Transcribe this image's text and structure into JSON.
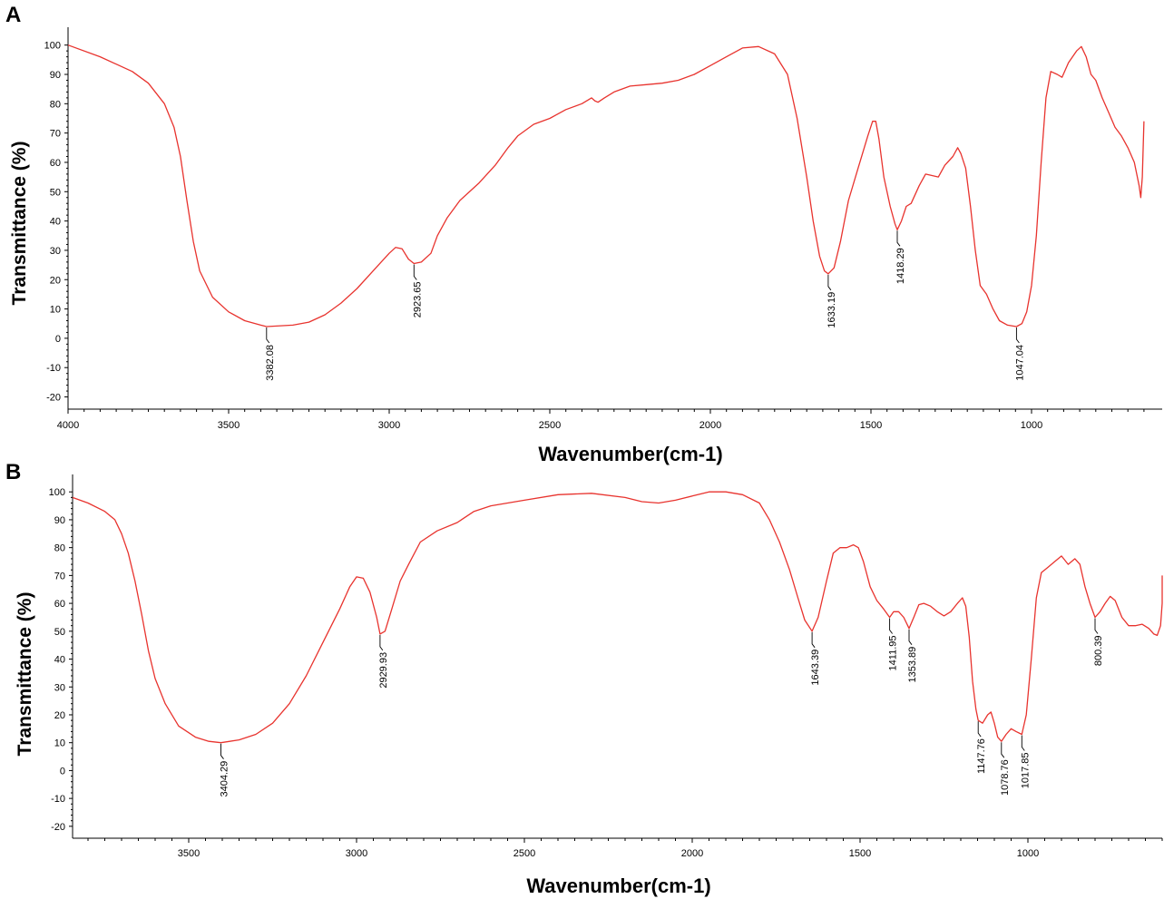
{
  "colors": {
    "spectrum": "#e8332e",
    "axis": "#000000"
  },
  "chart_data": [
    {
      "type": "line",
      "panel_label": "A",
      "xlabel": "Wavenumber(cm-1)",
      "ylabel": "Transmittance (%)",
      "xlim": [
        4000,
        650
      ],
      "ylim": [
        -22,
        103
      ],
      "x_ticks": [
        4000,
        3500,
        3000,
        2500,
        2000,
        1500,
        1000
      ],
      "y_ticks": [
        -20,
        -10,
        0,
        10,
        20,
        30,
        40,
        50,
        60,
        70,
        80,
        90,
        100
      ],
      "series": [
        {
          "points": [
            [
              4000,
              100
            ],
            [
              3900,
              96
            ],
            [
              3800,
              91
            ],
            [
              3750,
              87
            ],
            [
              3700,
              80
            ],
            [
              3670,
              72
            ],
            [
              3650,
              62
            ],
            [
              3630,
              47
            ],
            [
              3610,
              33
            ],
            [
              3590,
              23
            ],
            [
              3550,
              14
            ],
            [
              3500,
              9
            ],
            [
              3450,
              6
            ],
            [
              3400,
              4.5
            ],
            [
              3382,
              4
            ],
            [
              3300,
              4.5
            ],
            [
              3250,
              5.5
            ],
            [
              3200,
              8
            ],
            [
              3150,
              12
            ],
            [
              3100,
              17
            ],
            [
              3050,
              23
            ],
            [
              3000,
              29
            ],
            [
              2980,
              31
            ],
            [
              2960,
              30.5
            ],
            [
              2940,
              27
            ],
            [
              2923,
              25.5
            ],
            [
              2900,
              26
            ],
            [
              2870,
              29
            ],
            [
              2850,
              35
            ],
            [
              2820,
              41
            ],
            [
              2780,
              47
            ],
            [
              2720,
              53
            ],
            [
              2670,
              59
            ],
            [
              2630,
              65
            ],
            [
              2600,
              69
            ],
            [
              2550,
              73
            ],
            [
              2500,
              75
            ],
            [
              2450,
              78
            ],
            [
              2400,
              80
            ],
            [
              2370,
              82
            ],
            [
              2360,
              81
            ],
            [
              2350,
              80.5
            ],
            [
              2330,
              82
            ],
            [
              2300,
              84
            ],
            [
              2250,
              86
            ],
            [
              2200,
              86.5
            ],
            [
              2150,
              87
            ],
            [
              2100,
              88
            ],
            [
              2050,
              90
            ],
            [
              2000,
              93
            ],
            [
              1950,
              96
            ],
            [
              1900,
              99
            ],
            [
              1850,
              99.5
            ],
            [
              1800,
              97
            ],
            [
              1760,
              90
            ],
            [
              1730,
              75
            ],
            [
              1700,
              55
            ],
            [
              1680,
              40
            ],
            [
              1660,
              28
            ],
            [
              1645,
              23
            ],
            [
              1633,
              22
            ],
            [
              1615,
              24
            ],
            [
              1595,
              33
            ],
            [
              1570,
              47
            ],
            [
              1540,
              58
            ],
            [
              1510,
              69
            ],
            [
              1495,
              74
            ],
            [
              1485,
              74
            ],
            [
              1475,
              68
            ],
            [
              1460,
              55
            ],
            [
              1440,
              45
            ],
            [
              1425,
              39
            ],
            [
              1418,
              37
            ],
            [
              1405,
              40
            ],
            [
              1390,
              45
            ],
            [
              1375,
              46
            ],
            [
              1350,
              52
            ],
            [
              1330,
              56
            ],
            [
              1310,
              55.5
            ],
            [
              1290,
              55
            ],
            [
              1270,
              59
            ],
            [
              1245,
              62
            ],
            [
              1230,
              65
            ],
            [
              1220,
              63
            ],
            [
              1205,
              58
            ],
            [
              1190,
              45
            ],
            [
              1175,
              30
            ],
            [
              1160,
              18
            ],
            [
              1140,
              15
            ],
            [
              1120,
              10
            ],
            [
              1100,
              6
            ],
            [
              1075,
              4.5
            ],
            [
              1047,
              4
            ],
            [
              1030,
              5
            ],
            [
              1015,
              9
            ],
            [
              1000,
              18
            ],
            [
              985,
              35
            ],
            [
              970,
              60
            ],
            [
              955,
              82
            ],
            [
              940,
              91
            ],
            [
              920,
              90
            ],
            [
              905,
              89
            ],
            [
              885,
              94
            ],
            [
              860,
              98
            ],
            [
              845,
              99.5
            ],
            [
              830,
              96
            ],
            [
              815,
              90
            ],
            [
              800,
              88
            ],
            [
              780,
              82
            ],
            [
              760,
              77
            ],
            [
              740,
              72
            ],
            [
              720,
              69
            ],
            [
              700,
              65
            ],
            [
              680,
              60
            ],
            [
              665,
              52
            ],
            [
              660,
              48
            ],
            [
              655,
              55
            ],
            [
              650,
              74
            ]
          ]
        }
      ],
      "annotations": [
        {
          "label": "3382.08",
          "x": 3382,
          "y": 4
        },
        {
          "label": "2923.65",
          "x": 2923,
          "y": 25.5
        },
        {
          "label": "1633.19",
          "x": 1633,
          "y": 22
        },
        {
          "label": "1418.29",
          "x": 1418,
          "y": 37
        },
        {
          "label": "1047.04",
          "x": 1047,
          "y": 4
        }
      ]
    },
    {
      "type": "line",
      "panel_label": "B",
      "xlabel": "Wavenumber(cm-1)",
      "ylabel": "Transmittance (%)",
      "xlim": [
        3850,
        580
      ],
      "ylim": [
        -22,
        103
      ],
      "x_ticks": [
        3500,
        3000,
        2500,
        2000,
        1500,
        1000
      ],
      "y_ticks": [
        -20,
        -10,
        0,
        10,
        20,
        30,
        40,
        50,
        60,
        70,
        80,
        90,
        100
      ],
      "series": [
        {
          "points": [
            [
              3850,
              98
            ],
            [
              3800,
              96
            ],
            [
              3750,
              93
            ],
            [
              3720,
              90
            ],
            [
              3700,
              85
            ],
            [
              3680,
              78
            ],
            [
              3660,
              68
            ],
            [
              3640,
              56
            ],
            [
              3620,
              43
            ],
            [
              3600,
              33
            ],
            [
              3570,
              24
            ],
            [
              3530,
              16
            ],
            [
              3480,
              12
            ],
            [
              3440,
              10.5
            ],
            [
              3404,
              10
            ],
            [
              3350,
              11
            ],
            [
              3300,
              13
            ],
            [
              3250,
              17
            ],
            [
              3200,
              24
            ],
            [
              3150,
              34
            ],
            [
              3100,
              46
            ],
            [
              3050,
              58
            ],
            [
              3020,
              66
            ],
            [
              3000,
              69.5
            ],
            [
              2980,
              69
            ],
            [
              2960,
              64
            ],
            [
              2940,
              55
            ],
            [
              2930,
              49
            ],
            [
              2915,
              50
            ],
            [
              2895,
              58
            ],
            [
              2870,
              68
            ],
            [
              2845,
              74
            ],
            [
              2810,
              82
            ],
            [
              2760,
              86
            ],
            [
              2700,
              89
            ],
            [
              2650,
              93
            ],
            [
              2600,
              95
            ],
            [
              2500,
              97
            ],
            [
              2400,
              99
            ],
            [
              2300,
              99.5
            ],
            [
              2200,
              98
            ],
            [
              2150,
              96.5
            ],
            [
              2100,
              96
            ],
            [
              2050,
              97
            ],
            [
              2000,
              98.5
            ],
            [
              1950,
              100
            ],
            [
              1900,
              100
            ],
            [
              1850,
              99
            ],
            [
              1800,
              96
            ],
            [
              1770,
              90
            ],
            [
              1740,
              82
            ],
            [
              1710,
              72
            ],
            [
              1685,
              62
            ],
            [
              1665,
              54
            ],
            [
              1643,
              50
            ],
            [
              1625,
              55
            ],
            [
              1600,
              68
            ],
            [
              1580,
              78
            ],
            [
              1560,
              80
            ],
            [
              1540,
              80
            ],
            [
              1520,
              81
            ],
            [
              1505,
              80
            ],
            [
              1490,
              75
            ],
            [
              1470,
              66
            ],
            [
              1450,
              61
            ],
            [
              1430,
              58
            ],
            [
              1412,
              55
            ],
            [
              1400,
              57
            ],
            [
              1385,
              57
            ],
            [
              1370,
              55
            ],
            [
              1354,
              51
            ],
            [
              1340,
              55
            ],
            [
              1325,
              59.5
            ],
            [
              1310,
              60
            ],
            [
              1290,
              59
            ],
            [
              1270,
              57
            ],
            [
              1250,
              55.5
            ],
            [
              1230,
              57
            ],
            [
              1210,
              60
            ],
            [
              1195,
              62
            ],
            [
              1185,
              59
            ],
            [
              1175,
              48
            ],
            [
              1165,
              32
            ],
            [
              1155,
              22
            ],
            [
              1148,
              18
            ],
            [
              1135,
              17
            ],
            [
              1120,
              20
            ],
            [
              1110,
              21
            ],
            [
              1100,
              17
            ],
            [
              1090,
              12
            ],
            [
              1079,
              10.5
            ],
            [
              1065,
              13
            ],
            [
              1050,
              15
            ],
            [
              1035,
              14
            ],
            [
              1018,
              13
            ],
            [
              1005,
              20
            ],
            [
              990,
              40
            ],
            [
              975,
              62
            ],
            [
              960,
              71
            ],
            [
              940,
              73
            ],
            [
              920,
              75
            ],
            [
              900,
              77
            ],
            [
              880,
              74
            ],
            [
              860,
              76
            ],
            [
              845,
              74
            ],
            [
              830,
              66
            ],
            [
              815,
              60
            ],
            [
              800,
              55
            ],
            [
              785,
              57
            ],
            [
              770,
              60
            ],
            [
              755,
              62.5
            ],
            [
              740,
              61
            ],
            [
              720,
              55
            ],
            [
              700,
              52
            ],
            [
              680,
              52
            ],
            [
              660,
              52.5
            ],
            [
              640,
              51
            ],
            [
              625,
              49
            ],
            [
              615,
              48.5
            ],
            [
              605,
              52
            ],
            [
              595,
              60
            ],
            [
              585,
              70
            ]
          ]
        }
      ],
      "annotations": [
        {
          "label": "3404.29",
          "x": 3404,
          "y": 10
        },
        {
          "label": "2929.93",
          "x": 2930,
          "y": 49
        },
        {
          "label": "1643.39",
          "x": 1643,
          "y": 50
        },
        {
          "label": "1411.95",
          "x": 1412,
          "y": 55
        },
        {
          "label": "1353.89",
          "x": 1354,
          "y": 51
        },
        {
          "label": "1147.76",
          "x": 1148,
          "y": 18
        },
        {
          "label": "1078.76",
          "x": 1079,
          "y": 10.5
        },
        {
          "label": "1017.85",
          "x": 1018,
          "y": 13
        },
        {
          "label": "800.39",
          "x": 800,
          "y": 55
        }
      ]
    }
  ]
}
